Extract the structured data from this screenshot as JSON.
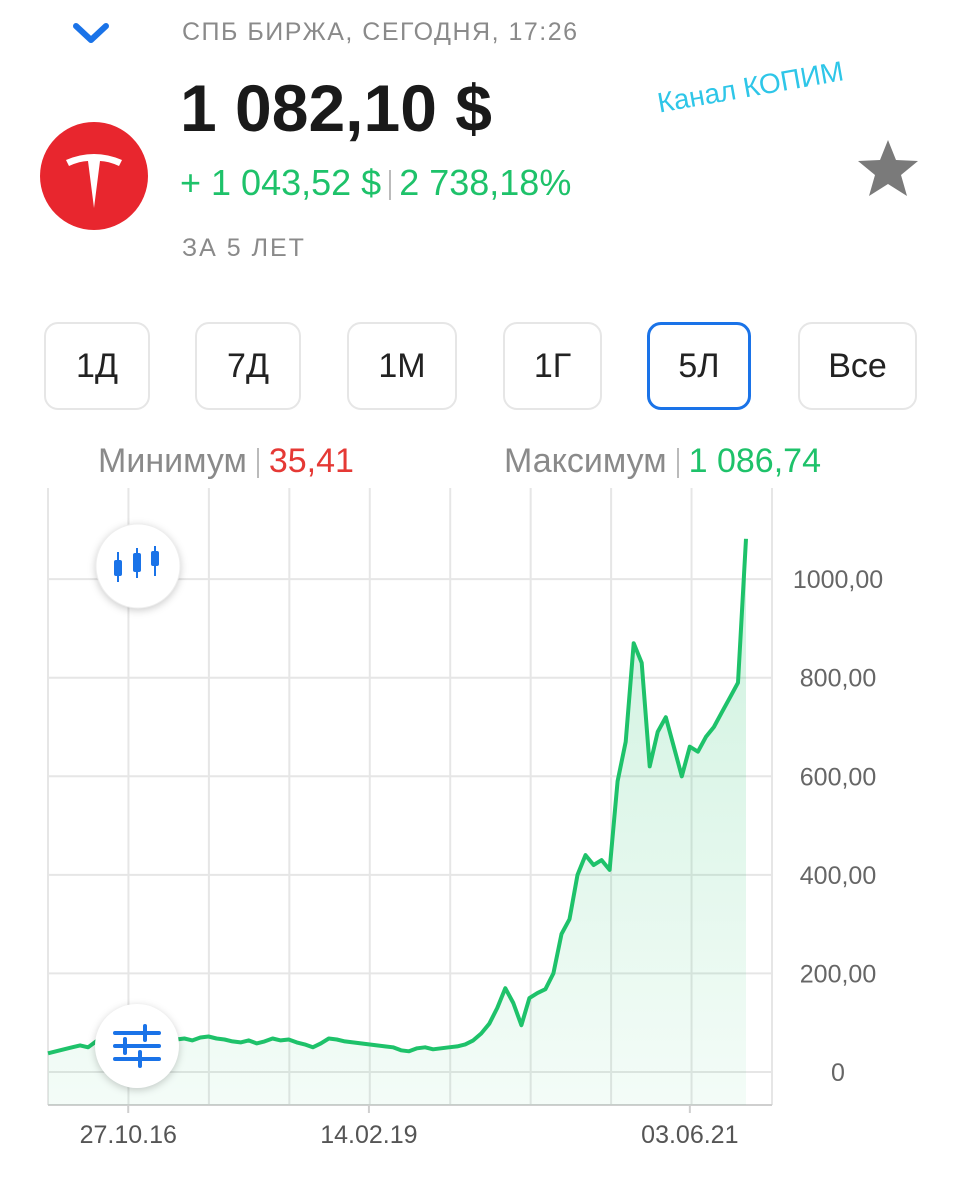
{
  "header": {
    "exchange": "СПБ БИРЖА, СЕГОДНЯ, 17:26",
    "price": "1 082,10 $",
    "change": "+ 1 043,52 $",
    "change_pct": "2 738,18%",
    "period": "ЗА 5 ЛЕТ",
    "watermark": "Канал КОПИМ"
  },
  "periods": {
    "buttons": [
      "1Д",
      "7Д",
      "1М",
      "1Г",
      "5Л",
      "Все"
    ],
    "selected": 4
  },
  "range": {
    "min_label": "Минимум",
    "min_value": "35,41",
    "max_label": "Максимум",
    "max_value": "1 086,74"
  },
  "chart_data": {
    "type": "area",
    "color": "#1ec26a",
    "categories": [
      null,
      null,
      null,
      null,
      null,
      null,
      null,
      null,
      null,
      null,
      "27.10.16",
      null,
      null,
      null,
      null,
      null,
      null,
      null,
      null,
      null,
      null,
      null,
      null,
      null,
      null,
      null,
      null,
      null,
      null,
      null,
      null,
      null,
      null,
      null,
      null,
      null,
      null,
      null,
      null,
      null,
      "14.02.19",
      null,
      null,
      null,
      null,
      null,
      null,
      null,
      null,
      null,
      null,
      null,
      null,
      null,
      null,
      null,
      null,
      null,
      null,
      null,
      null,
      null,
      null,
      null,
      null,
      null,
      null,
      null,
      null,
      null,
      null,
      null,
      null,
      null,
      null,
      null,
      null,
      null,
      null,
      null,
      "03.06.21",
      null,
      null,
      null,
      null,
      null,
      null,
      null
    ],
    "values": [
      38,
      42,
      46,
      50,
      54,
      50,
      62,
      64,
      60,
      66,
      62,
      64,
      60,
      63,
      58,
      62,
      66,
      68,
      64,
      70,
      72,
      68,
      66,
      62,
      60,
      64,
      58,
      62,
      68,
      64,
      66,
      60,
      56,
      50,
      58,
      68,
      66,
      62,
      60,
      58,
      56,
      54,
      52,
      50,
      44,
      42,
      48,
      50,
      46,
      48,
      50,
      52,
      56,
      64,
      78,
      98,
      130,
      170,
      140,
      95,
      150,
      160,
      168,
      200,
      280,
      310,
      400,
      440,
      420,
      430,
      410,
      590,
      670,
      870,
      830,
      620,
      690,
      720,
      660,
      600,
      660,
      650,
      680,
      700,
      730,
      760,
      790,
      1082
    ],
    "ylim": [
      -67,
      1185
    ],
    "yticks": [
      0,
      {
        "value": 200,
        "label": "200,00"
      },
      {
        "value": 400,
        "label": "400,00"
      },
      {
        "value": 600,
        "label": "600,00"
      },
      {
        "value": 800,
        "label": "800,00"
      },
      {
        "value": 1000,
        "label": "1000,00"
      }
    ],
    "grid": true
  }
}
